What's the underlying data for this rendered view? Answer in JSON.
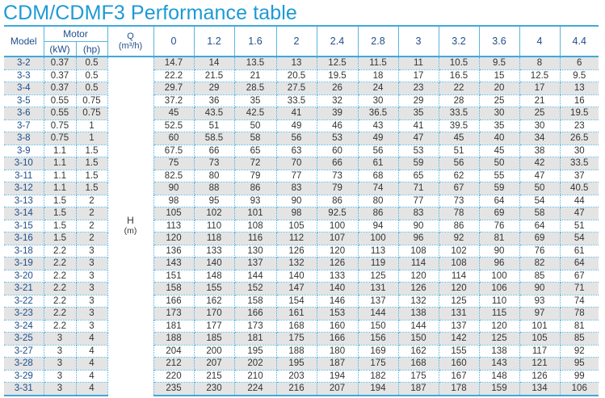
{
  "title": "CDM/CDMF3 Performance table",
  "header": {
    "model": "Model",
    "motor": "Motor",
    "kw": "(kW)",
    "hp": "(hp)",
    "q_label": "Q",
    "q_unit": "(m³/h)",
    "h_label": "H",
    "h_unit": "(m)",
    "flows": [
      "0",
      "1.2",
      "1.6",
      "2",
      "2.4",
      "2.8",
      "3",
      "3.2",
      "3.6",
      "4",
      "4.4"
    ]
  },
  "colors": {
    "title": "#1d9ad6",
    "header_text": "#1f4e8c",
    "border": "#3fa9d9",
    "shade": "#e4e4e4"
  },
  "rows": [
    {
      "model": "3-2",
      "kw": "0.37",
      "hp": "0.5",
      "h": [
        "14.7",
        "14",
        "13.5",
        "13",
        "12.5",
        "11.5",
        "11",
        "10.5",
        "9.5",
        "8",
        "6"
      ]
    },
    {
      "model": "3-3",
      "kw": "0.37",
      "hp": "0.5",
      "h": [
        "22.2",
        "21.5",
        "21",
        "20.5",
        "19.5",
        "18",
        "17",
        "16.5",
        "15",
        "12.5",
        "9.5"
      ]
    },
    {
      "model": "3-4",
      "kw": "0.37",
      "hp": "0.5",
      "h": [
        "29.7",
        "29",
        "28.5",
        "27.5",
        "26",
        "24",
        "23",
        "22",
        "20",
        "17",
        "13"
      ]
    },
    {
      "model": "3-5",
      "kw": "0.55",
      "hp": "0.75",
      "h": [
        "37.2",
        "36",
        "35",
        "33.5",
        "32",
        "30",
        "29",
        "28",
        "25",
        "21",
        "16"
      ]
    },
    {
      "model": "3-6",
      "kw": "0.55",
      "hp": "0.75",
      "h": [
        "45",
        "43.5",
        "42.5",
        "41",
        "39",
        "36.5",
        "35",
        "33.5",
        "30",
        "25",
        "19.5"
      ]
    },
    {
      "model": "3-7",
      "kw": "0.75",
      "hp": "1",
      "h": [
        "52.5",
        "51",
        "50",
        "49",
        "46",
        "43",
        "41",
        "39.5",
        "35",
        "30",
        "23"
      ]
    },
    {
      "model": "3-8",
      "kw": "0.75",
      "hp": "1",
      "h": [
        "60",
        "58.5",
        "58",
        "56",
        "53",
        "49",
        "47",
        "45",
        "40",
        "34",
        "26.5"
      ]
    },
    {
      "model": "3-9",
      "kw": "1.1",
      "hp": "1.5",
      "h": [
        "67.5",
        "66",
        "65",
        "63",
        "60",
        "56",
        "53",
        "51",
        "45",
        "38",
        "30"
      ]
    },
    {
      "model": "3-10",
      "kw": "1.1",
      "hp": "1.5",
      "h": [
        "75",
        "73",
        "72",
        "70",
        "66",
        "61",
        "59",
        "56",
        "50",
        "42",
        "33.5"
      ]
    },
    {
      "model": "3-11",
      "kw": "1.1",
      "hp": "1.5",
      "h": [
        "82.5",
        "80",
        "79",
        "77",
        "73",
        "68",
        "65",
        "62",
        "55",
        "47",
        "37"
      ]
    },
    {
      "model": "3-12",
      "kw": "1.1",
      "hp": "1.5",
      "h": [
        "90",
        "88",
        "86",
        "83",
        "79",
        "74",
        "71",
        "67",
        "59",
        "50",
        "40.5"
      ]
    },
    {
      "model": "3-13",
      "kw": "1.5",
      "hp": "2",
      "h": [
        "98",
        "95",
        "93",
        "90",
        "86",
        "80",
        "77",
        "73",
        "64",
        "54",
        "44"
      ]
    },
    {
      "model": "3-14",
      "kw": "1.5",
      "hp": "2",
      "h": [
        "105",
        "102",
        "101",
        "98",
        "92.5",
        "86",
        "83",
        "78",
        "69",
        "58",
        "47"
      ]
    },
    {
      "model": "3-15",
      "kw": "1.5",
      "hp": "2",
      "h": [
        "113",
        "110",
        "108",
        "105",
        "100",
        "94",
        "90",
        "86",
        "76",
        "64",
        "51"
      ]
    },
    {
      "model": "3-16",
      "kw": "1.5",
      "hp": "2",
      "h": [
        "120",
        "118",
        "116",
        "112",
        "107",
        "100",
        "96",
        "92",
        "81",
        "69",
        "54"
      ]
    },
    {
      "model": "3-18",
      "kw": "2.2",
      "hp": "3",
      "h": [
        "136",
        "133",
        "130",
        "126",
        "120",
        "113",
        "108",
        "102",
        "90",
        "76",
        "61"
      ]
    },
    {
      "model": "3-19",
      "kw": "2.2",
      "hp": "3",
      "h": [
        "143",
        "140",
        "137",
        "132",
        "126",
        "119",
        "114",
        "108",
        "96",
        "82",
        "64"
      ]
    },
    {
      "model": "3-20",
      "kw": "2.2",
      "hp": "3",
      "h": [
        "151",
        "148",
        "144",
        "140",
        "133",
        "125",
        "120",
        "114",
        "100",
        "85",
        "67"
      ]
    },
    {
      "model": "3-21",
      "kw": "2.2",
      "hp": "3",
      "h": [
        "158",
        "155",
        "152",
        "147",
        "140",
        "131",
        "126",
        "120",
        "106",
        "90",
        "71"
      ]
    },
    {
      "model": "3-22",
      "kw": "2.2",
      "hp": "3",
      "h": [
        "166",
        "162",
        "158",
        "154",
        "146",
        "137",
        "132",
        "125",
        "110",
        "93",
        "74"
      ]
    },
    {
      "model": "3-23",
      "kw": "2.2",
      "hp": "3",
      "h": [
        "173",
        "170",
        "166",
        "161",
        "153",
        "144",
        "138",
        "131",
        "115",
        "97",
        "78"
      ]
    },
    {
      "model": "3-24",
      "kw": "2.2",
      "hp": "3",
      "h": [
        "181",
        "177",
        "173",
        "168",
        "160",
        "150",
        "144",
        "137",
        "120",
        "101",
        "81"
      ]
    },
    {
      "model": "3-25",
      "kw": "3",
      "hp": "4",
      "h": [
        "188",
        "185",
        "181",
        "175",
        "166",
        "156",
        "150",
        "142",
        "125",
        "105",
        "85"
      ]
    },
    {
      "model": "3-27",
      "kw": "3",
      "hp": "4",
      "h": [
        "204",
        "200",
        "195",
        "188",
        "180",
        "169",
        "162",
        "155",
        "138",
        "117",
        "92"
      ]
    },
    {
      "model": "3-28",
      "kw": "3",
      "hp": "4",
      "h": [
        "212",
        "207",
        "202",
        "195",
        "187",
        "175",
        "168",
        "160",
        "143",
        "121",
        "95"
      ]
    },
    {
      "model": "3-29",
      "kw": "3",
      "hp": "4",
      "h": [
        "220",
        "215",
        "210",
        "203",
        "194",
        "182",
        "175",
        "167",
        "148",
        "126",
        "99"
      ]
    },
    {
      "model": "3-31",
      "kw": "3",
      "hp": "4",
      "h": [
        "235",
        "230",
        "224",
        "216",
        "207",
        "194",
        "187",
        "178",
        "159",
        "134",
        "106"
      ]
    }
  ]
}
